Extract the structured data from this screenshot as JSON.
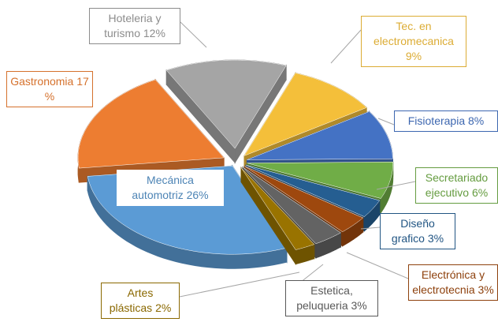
{
  "chart_data": {
    "type": "pie",
    "three_d": true,
    "exploded": true,
    "categories": [
      "Hoteleria y turismo",
      "Tec. en electromecanica",
      "Fisioterapia",
      "Secretariado ejecutivo",
      "Diseño grafico",
      "Electrónica y electrotecnia",
      "Estetica, peluqueria",
      "Artes plásticas",
      "Mecánica automotriz",
      "Gastronomia"
    ],
    "values": [
      12,
      9,
      8,
      6,
      3,
      3,
      3,
      2,
      26,
      17
    ],
    "value_labels": [
      "12%",
      "9%",
      "8%",
      "6%",
      "3%",
      "3%",
      "3%",
      "2%",
      "26%",
      "17 %"
    ],
    "colors": [
      "#a5a5a5",
      "#f4bf3a",
      "#4472c4",
      "#70ad47",
      "#255e91",
      "#9e480e",
      "#636363",
      "#997300",
      "#5b9bd5",
      "#ed7d31"
    ]
  }
}
